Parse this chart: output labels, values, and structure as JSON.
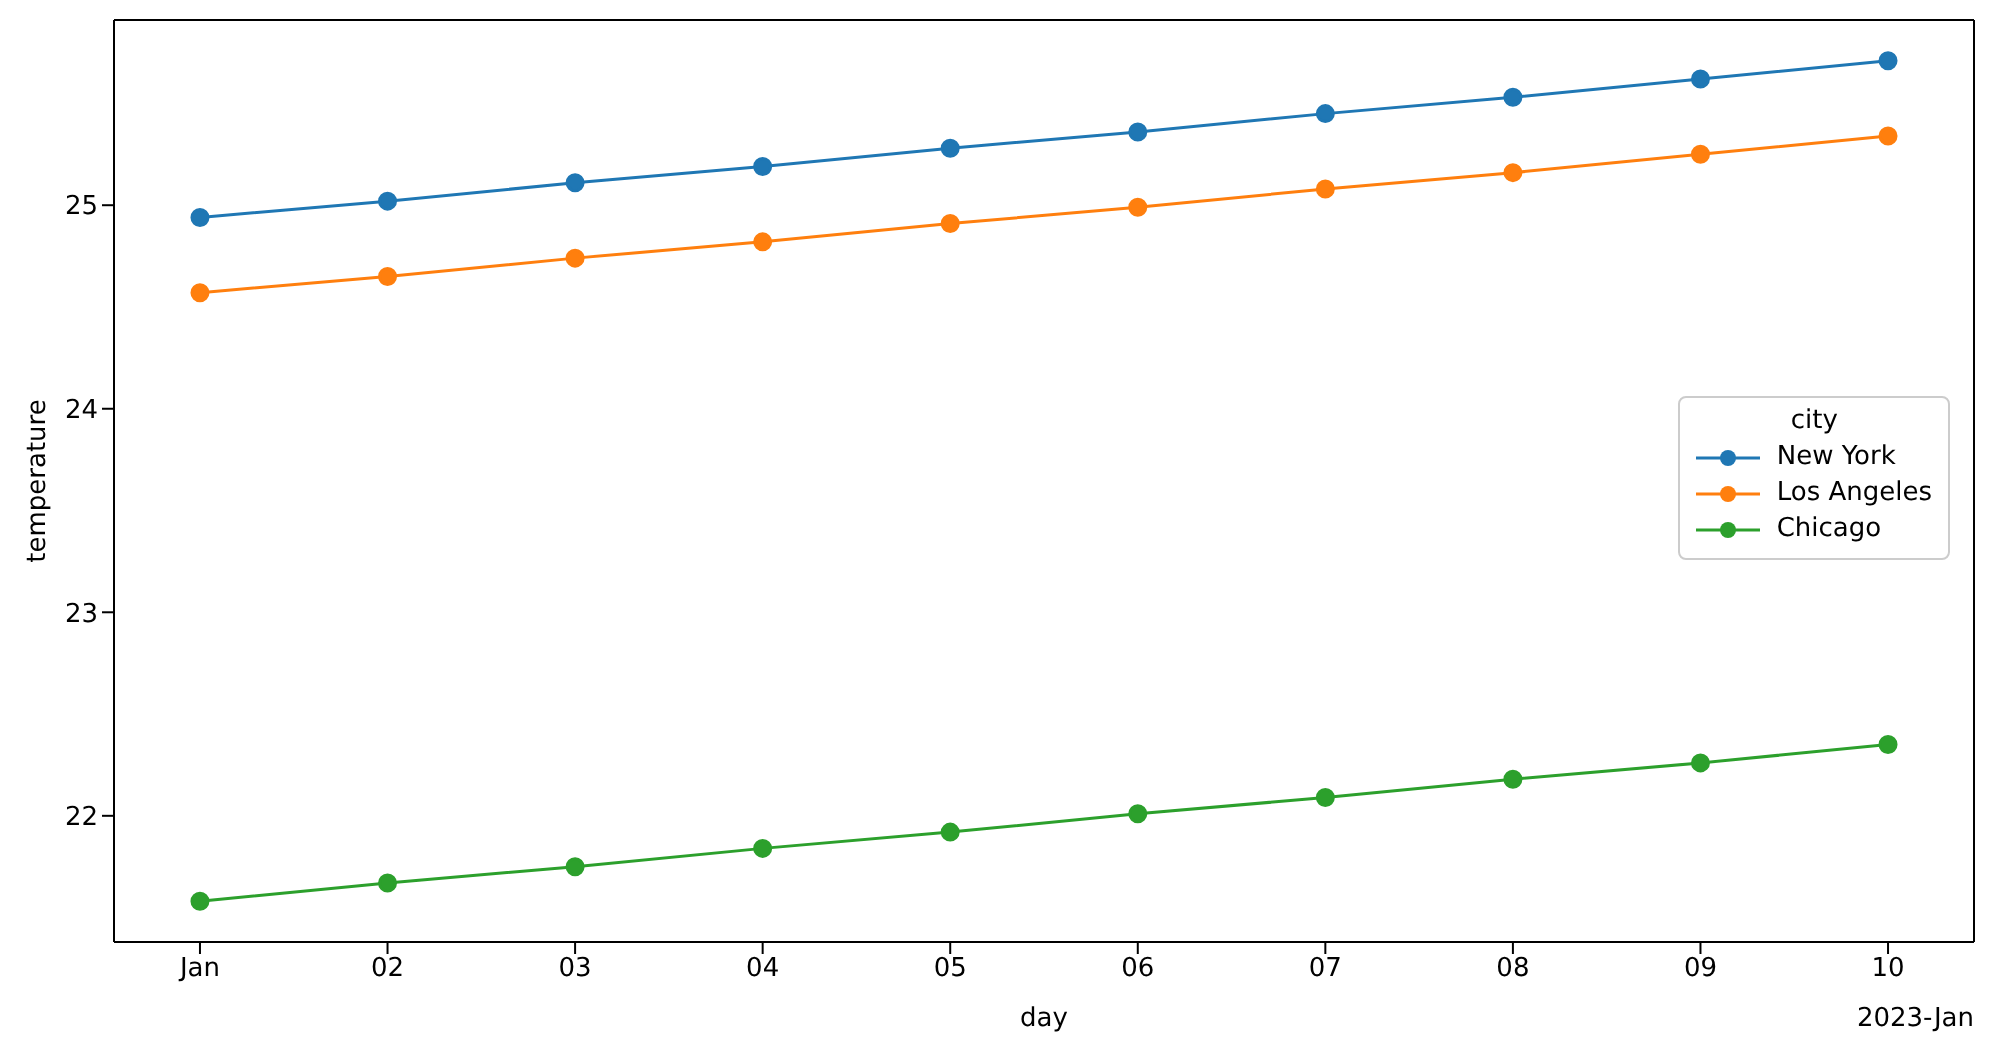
{
  "chart_data": {
    "type": "line",
    "xlabel": "day",
    "ylabel": "temperature",
    "legend_title": "city",
    "x": [
      "2023-01-01",
      "2023-01-02",
      "2023-01-03",
      "2023-01-04",
      "2023-01-05",
      "2023-01-06",
      "2023-01-07",
      "2023-01-08",
      "2023-01-09",
      "2023-01-10"
    ],
    "series": [
      {
        "name": "New York",
        "color": "#1f77b4",
        "values": [
          24.94,
          25.02,
          25.11,
          25.19,
          25.28,
          25.36,
          25.45,
          25.53,
          25.62,
          25.71
        ]
      },
      {
        "name": "Los Angeles",
        "color": "#ff7f0e",
        "values": [
          24.57,
          24.65,
          24.74,
          24.82,
          24.91,
          24.99,
          25.08,
          25.16,
          25.25,
          25.34
        ]
      },
      {
        "name": "Chicago",
        "color": "#2ca02c",
        "values": [
          21.58,
          21.67,
          21.75,
          21.84,
          21.92,
          22.01,
          22.09,
          22.18,
          22.26,
          22.35
        ]
      }
    ],
    "xlim": [
      "2022-12-31T13:00",
      "2023-01-10T11:00"
    ],
    "xticks": [
      {
        "value": "2023-01-01",
        "label": "Jan"
      },
      {
        "value": "2023-01-02",
        "label": "02"
      },
      {
        "value": "2023-01-03",
        "label": "03"
      },
      {
        "value": "2023-01-04",
        "label": "04"
      },
      {
        "value": "2023-01-05",
        "label": "05"
      },
      {
        "value": "2023-01-06",
        "label": "06"
      },
      {
        "value": "2023-01-07",
        "label": "07"
      },
      {
        "value": "2023-01-08",
        "label": "08"
      },
      {
        "value": "2023-01-09",
        "label": "09"
      },
      {
        "value": "2023-01-10",
        "label": "10"
      }
    ],
    "ylim": [
      21.38,
      25.91
    ],
    "yticks": [
      22,
      23,
      24,
      25
    ],
    "annotations": [
      "2023-Jan"
    ],
    "legend": "right",
    "marker": "circle",
    "line_style": "solid",
    "grid": false
  }
}
